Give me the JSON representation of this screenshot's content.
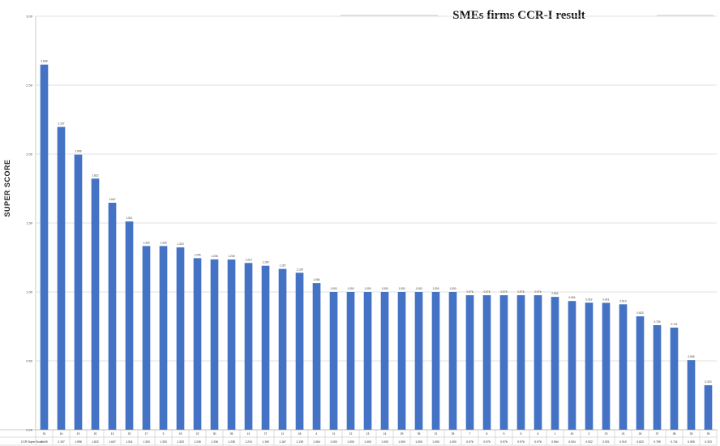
{
  "chart_data": {
    "type": "bar",
    "title": "SMEs firms CCR-I  result",
    "ylabel": "SUPER SCORE",
    "table_row_label": "CCR Super Score",
    "ylim": [
      0,
      3
    ],
    "yticks": [
      "0.00",
      "0.50",
      "1.00",
      "1.50",
      "2.00",
      "2.50",
      "3.00"
    ],
    "grid": true,
    "color": "#4472C4",
    "categories": [
      "31",
      "16",
      "19",
      "20",
      "13",
      "32",
      "17",
      "3",
      "15",
      "22",
      "30",
      "35",
      "41",
      "27",
      "11",
      "18",
      "4",
      "11",
      "12",
      "13",
      "14",
      "29",
      "35",
      "21",
      "28",
      "7",
      "8",
      "9",
      "5",
      "6",
      "1",
      "40",
      "2",
      "23",
      "24",
      "26",
      "37",
      "38",
      "33",
      "39"
    ],
    "values": [
      2.649,
      2.197,
      1.996,
      1.822,
      1.647,
      1.511,
      1.333,
      1.333,
      1.323,
      1.245,
      1.236,
      1.235,
      1.21,
      1.19,
      1.167,
      1.139,
      1.064,
      1.0,
      1.0,
      1.0,
      1.0,
      1.0,
      1.0,
      1.0,
      1.0,
      0.976,
      0.976,
      0.976,
      0.976,
      0.976,
      0.964,
      0.934,
      0.922,
      0.921,
      0.91,
      0.823,
      0.759,
      0.741,
      0.505,
      0.323
    ],
    "table_values": [
      "2.649",
      "2.197",
      "1.996",
      "1.822",
      "1.647",
      "1.511",
      "1.333",
      "1.333",
      "1.323",
      "1.245",
      "1.236",
      "1.235",
      "1.210",
      "1.190",
      "1.167",
      "1.139",
      "1.064",
      "1.000",
      "1.000",
      "1.000",
      "1.000",
      "1.000",
      "1.000",
      "1.000",
      "1.000",
      "0.976",
      "0.976",
      "0.976",
      "0.976",
      "0.976",
      "0.964",
      "0.934",
      "0.922",
      "0.921",
      "0.910",
      "0.823",
      "0.759",
      "0.741",
      "0.505",
      "0.323"
    ]
  }
}
